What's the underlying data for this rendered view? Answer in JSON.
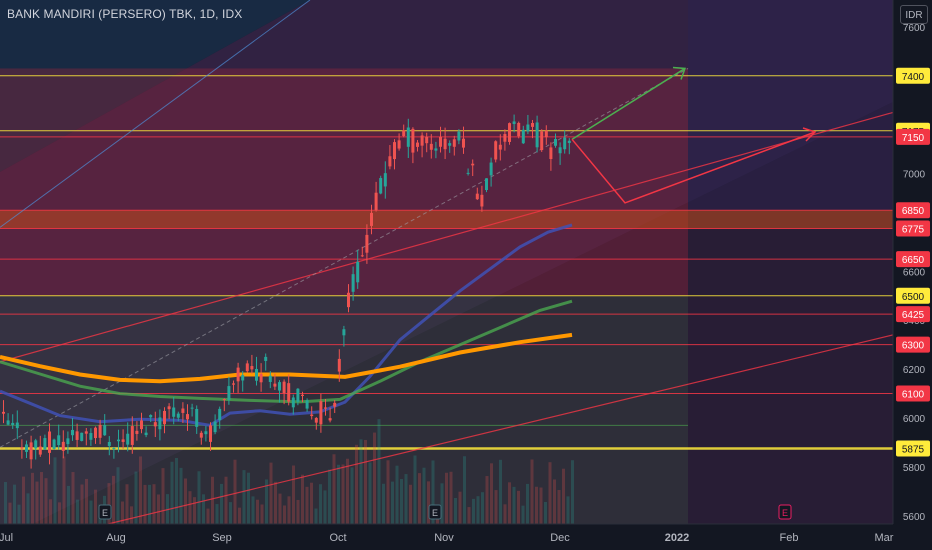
{
  "header": {
    "symbol": "BANK MANDIRI (PERSERO) TBK, 1D, IDX",
    "currency": "IDR"
  },
  "colors": {
    "background": "#131722",
    "up": "#26a69a",
    "down": "#ef5350",
    "ma_short": "#3f51b5",
    "ma_mid": "#4caf50",
    "ma_long": "#ff9800",
    "level_yellow": "#ffeb3b",
    "level_red": "#f23645",
    "projection_green": "#4caf50",
    "projection_red": "#f23645"
  },
  "chart_data": {
    "type": "candlestick",
    "title": "BANK MANDIRI (PERSERO) TBK, 1D, IDX",
    "ylabel": "IDR",
    "ylim": [
      5460,
      7710
    ],
    "y_ticks": [
      5600,
      5800,
      6000,
      6200,
      6400,
      6600,
      7000,
      7600
    ],
    "x_ticks": [
      "Jul",
      "Aug",
      "Sep",
      "Oct",
      "Nov",
      "Dec",
      "2022",
      "Feb",
      "Mar"
    ],
    "horizontal_levels": [
      {
        "value": 7400,
        "label": "7400",
        "color": "yellow"
      },
      {
        "value": 7175,
        "label": "7175",
        "color": "yellow"
      },
      {
        "value": 7150,
        "label": "7150",
        "color": "red"
      },
      {
        "value": 6850,
        "label": "6850",
        "color": "red"
      },
      {
        "value": 6775,
        "label": "6775",
        "color": "red"
      },
      {
        "value": 6650,
        "label": "6650",
        "color": "red"
      },
      {
        "value": 6500,
        "label": "6500",
        "color": "yellow"
      },
      {
        "value": 6425,
        "label": "6425",
        "color": "red"
      },
      {
        "value": 6300,
        "label": "6300",
        "color": "red"
      },
      {
        "value": 6100,
        "label": "6100",
        "color": "red"
      },
      {
        "value": 5875,
        "label": "5875",
        "color": "yellow"
      }
    ],
    "earnings_markers": [
      "Jul 27",
      "Oct 27",
      "Jan 27"
    ],
    "ma_200": [
      [
        0,
        6250
      ],
      [
        40,
        6212
      ],
      [
        80,
        6178
      ],
      [
        120,
        6156
      ],
      [
        160,
        6150
      ],
      [
        200,
        6160
      ],
      [
        240,
        6178
      ],
      [
        290,
        6178
      ],
      [
        345,
        6168
      ],
      [
        400,
        6210
      ],
      [
        460,
        6268
      ],
      [
        520,
        6310
      ],
      [
        572,
        6340
      ]
    ],
    "ma_100": [
      [
        0,
        6230
      ],
      [
        40,
        6180
      ],
      [
        80,
        6130
      ],
      [
        120,
        6100
      ],
      [
        160,
        6088
      ],
      [
        200,
        6080
      ],
      [
        250,
        6072
      ],
      [
        300,
        6066
      ],
      [
        340,
        6076
      ],
      [
        380,
        6150
      ],
      [
        420,
        6230
      ],
      [
        460,
        6300
      ],
      [
        500,
        6370
      ],
      [
        540,
        6440
      ],
      [
        572,
        6478
      ]
    ],
    "ma_50": [
      [
        0,
        6110
      ],
      [
        30,
        6060
      ],
      [
        60,
        6010
      ],
      [
        100,
        5985
      ],
      [
        140,
        5995
      ],
      [
        180,
        5990
      ],
      [
        210,
        5970
      ],
      [
        230,
        6020
      ],
      [
        260,
        6030
      ],
      [
        290,
        6015
      ],
      [
        320,
        6025
      ],
      [
        345,
        6065
      ],
      [
        370,
        6170
      ],
      [
        400,
        6320
      ],
      [
        430,
        6420
      ],
      [
        460,
        6520
      ],
      [
        490,
        6610
      ],
      [
        520,
        6700
      ],
      [
        548,
        6760
      ],
      [
        572,
        6790
      ]
    ],
    "projection_green": [
      [
        572,
        7140
      ],
      [
        685,
        7430
      ]
    ],
    "projection_red": [
      [
        572,
        7140
      ],
      [
        625,
        6880
      ],
      [
        815,
        7170
      ]
    ]
  }
}
